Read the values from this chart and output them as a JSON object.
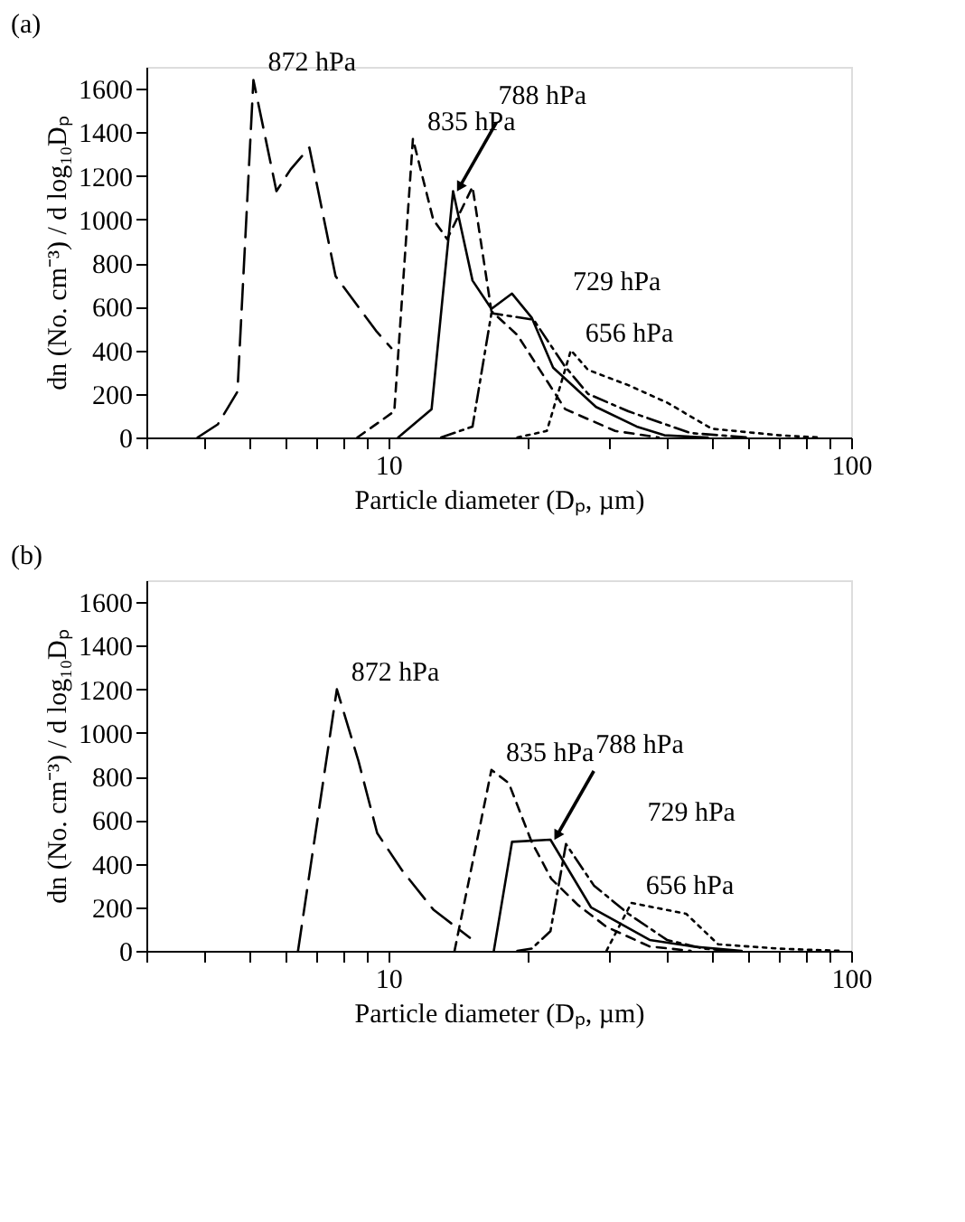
{
  "chart_data": [
    {
      "type": "line",
      "title": "(a)",
      "xlabel": "Particle diameter (Dₚ, µm)",
      "ylabel": "dn (No. cm⁻³) / d log₁₀Dₚ",
      "log": "x",
      "xlim": [
        3,
        100
      ],
      "ylim": [
        0,
        1700
      ],
      "xticks": [
        {
          "value": 3,
          "label": null
        },
        {
          "value": 4,
          "label": null
        },
        {
          "value": 5,
          "label": null
        },
        {
          "value": 6,
          "label": null
        },
        {
          "value": 7,
          "label": null
        },
        {
          "value": 8,
          "label": null
        },
        {
          "value": 9,
          "label": null
        },
        10,
        {
          "value": 20,
          "label": null
        },
        {
          "value": 30,
          "label": null
        },
        {
          "value": 40,
          "label": null
        },
        {
          "value": 50,
          "label": null
        },
        {
          "value": 60,
          "label": null
        },
        {
          "value": 70,
          "label": null
        },
        {
          "value": 80,
          "label": null
        },
        {
          "value": 90,
          "label": null
        },
        100
      ],
      "yticks": [
        0,
        200,
        400,
        600,
        800,
        1000,
        1200,
        1400,
        1600
      ],
      "grid": false,
      "legend": false,
      "series": [
        {
          "name": "872 hPa",
          "color": "#000000",
          "line_style": "dashed",
          "x": [
            3.87,
            4.28,
            4.72,
            5.11,
            5.73,
            6.15,
            6.75,
            7.69,
            9.4,
            10.15
          ],
          "values": [
            0,
            60,
            210,
            1640,
            1130,
            1230,
            1330,
            740,
            490,
            410
          ]
        },
        {
          "name": "835 hPa",
          "color": "#000000",
          "line_style": "dashed",
          "x": [
            8.57,
            10.3,
            11.3,
            12.5,
            13.4,
            15.2,
            16.7,
            19,
            24.1,
            30.9,
            38.4
          ],
          "values": [
            0,
            120,
            1370,
            1000,
            910,
            1150,
            580,
            470,
            130,
            30,
            0
          ]
        },
        {
          "name": "788 hPa",
          "color": "#000000",
          "line_style": "solid",
          "x": [
            10.5,
            12.4,
            13.8,
            15.2,
            16.7,
            18.5,
            20.4,
            22.7,
            28.1,
            34.4,
            39.5,
            49
          ],
          "values": [
            0,
            130,
            1130,
            720,
            590,
            660,
            550,
            320,
            140,
            50,
            10,
            0
          ]
        },
        {
          "name": "729 hPa",
          "color": "#000000",
          "line_style": "dashed",
          "x": [
            13,
            15.2,
            16.7,
            20.6,
            24,
            27,
            33,
            45,
            60
          ],
          "values": [
            0,
            50,
            570,
            540,
            330,
            200,
            120,
            20,
            0
          ]
        },
        {
          "name": "656 hPa",
          "color": "#000000",
          "line_style": "dotted",
          "x": [
            19,
            22,
            24.8,
            27,
            33,
            40,
            50,
            70,
            85
          ],
          "values": [
            0,
            30,
            400,
            310,
            240,
            160,
            40,
            10,
            0
          ]
        }
      ]
    },
    {
      "type": "line",
      "title": "(b)",
      "xlabel": "Particle diameter (Dₚ, µm)",
      "ylabel": "dn (No. cm⁻³) / d log₁₀Dₚ",
      "log": "x",
      "xlim": [
        3,
        100
      ],
      "ylim": [
        0,
        1700
      ],
      "xticks": [
        {
          "value": 3,
          "label": null
        },
        {
          "value": 4,
          "label": null
        },
        {
          "value": 5,
          "label": null
        },
        {
          "value": 6,
          "label": null
        },
        {
          "value": 7,
          "label": null
        },
        {
          "value": 8,
          "label": null
        },
        {
          "value": 9,
          "label": null
        },
        10,
        {
          "value": 20,
          "label": null
        },
        {
          "value": 30,
          "label": null
        },
        {
          "value": 40,
          "label": null
        },
        {
          "value": 50,
          "label": null
        },
        {
          "value": 60,
          "label": null
        },
        {
          "value": 70,
          "label": null
        },
        {
          "value": 80,
          "label": null
        },
        {
          "value": 90,
          "label": null
        },
        100
      ],
      "yticks": [
        0,
        200,
        400,
        600,
        800,
        1000,
        1200,
        1400,
        1600
      ],
      "grid": false,
      "legend": false,
      "series": [
        {
          "name": "872 hPa",
          "color": "#000000",
          "line_style": "dashed",
          "x": [
            6.38,
            7.74,
            8.62,
            9.46,
            10.7,
            12.5,
            15
          ],
          "values": [
            0,
            1200,
            870,
            540,
            370,
            190,
            60
          ]
        },
        {
          "name": "835 hPa",
          "color": "#000000",
          "line_style": "dashed",
          "x": [
            13.9,
            16.7,
            18.2,
            20.4,
            22.5,
            25.7,
            29.6,
            36.7,
            45
          ],
          "values": [
            0,
            830,
            770,
            500,
            330,
            210,
            110,
            20,
            0
          ]
        },
        {
          "name": "788 hPa",
          "color": "#000000",
          "line_style": "solid",
          "x": [
            16.9,
            18.5,
            22.4,
            27.4,
            36.7,
            45.5,
            58
          ],
          "values": [
            0,
            500,
            510,
            200,
            50,
            20,
            0
          ]
        },
        {
          "name": "729 hPa",
          "color": "#000000",
          "line_style": "dashed",
          "x": [
            19,
            20.4,
            22.4,
            24.2,
            27.8,
            33,
            40,
            48,
            55
          ],
          "values": [
            0,
            10,
            90,
            490,
            300,
            170,
            50,
            10,
            0
          ]
        },
        {
          "name": "656 hPa",
          "color": "#000000",
          "line_style": "dotted",
          "x": [
            29.6,
            33.5,
            44,
            51.6,
            70,
            95
          ],
          "values": [
            0,
            220,
            170,
            30,
            10,
            0
          ]
        }
      ]
    }
  ]
}
